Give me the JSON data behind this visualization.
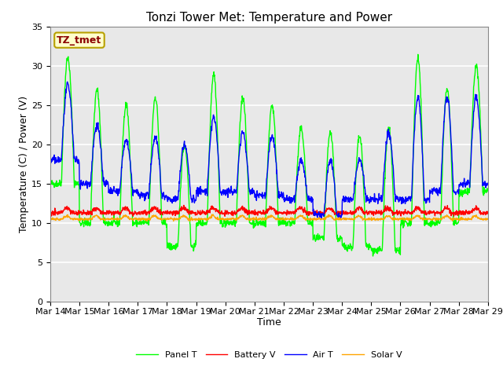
{
  "title": "Tonzi Tower Met: Temperature and Power",
  "xlabel": "Time",
  "ylabel": "Temperature (C) / Power (V)",
  "ylim": [
    0,
    35
  ],
  "yticks": [
    0,
    5,
    10,
    15,
    20,
    25,
    30,
    35
  ],
  "xtick_labels": [
    "Mar 14",
    "Mar 15",
    "Mar 16",
    "Mar 17",
    "Mar 18",
    "Mar 19",
    "Mar 20",
    "Mar 21",
    "Mar 22",
    "Mar 23",
    "Mar 24",
    "Mar 25",
    "Mar 26",
    "Mar 27",
    "Mar 28",
    "Mar 29"
  ],
  "annotation_text": "TZ_tmet",
  "annotation_color": "#8B0000",
  "annotation_bg": "#FFFFCC",
  "annotation_border": "#B8A000",
  "legend_labels": [
    "Panel T",
    "Battery V",
    "Air T",
    "Solar V"
  ],
  "line_colors": [
    "#00FF00",
    "#FF0000",
    "#0000FF",
    "#FFA500"
  ],
  "background_color": "#E8E8E8",
  "grid_color": "white",
  "title_fontsize": 11,
  "axis_fontsize": 9,
  "tick_fontsize": 8
}
